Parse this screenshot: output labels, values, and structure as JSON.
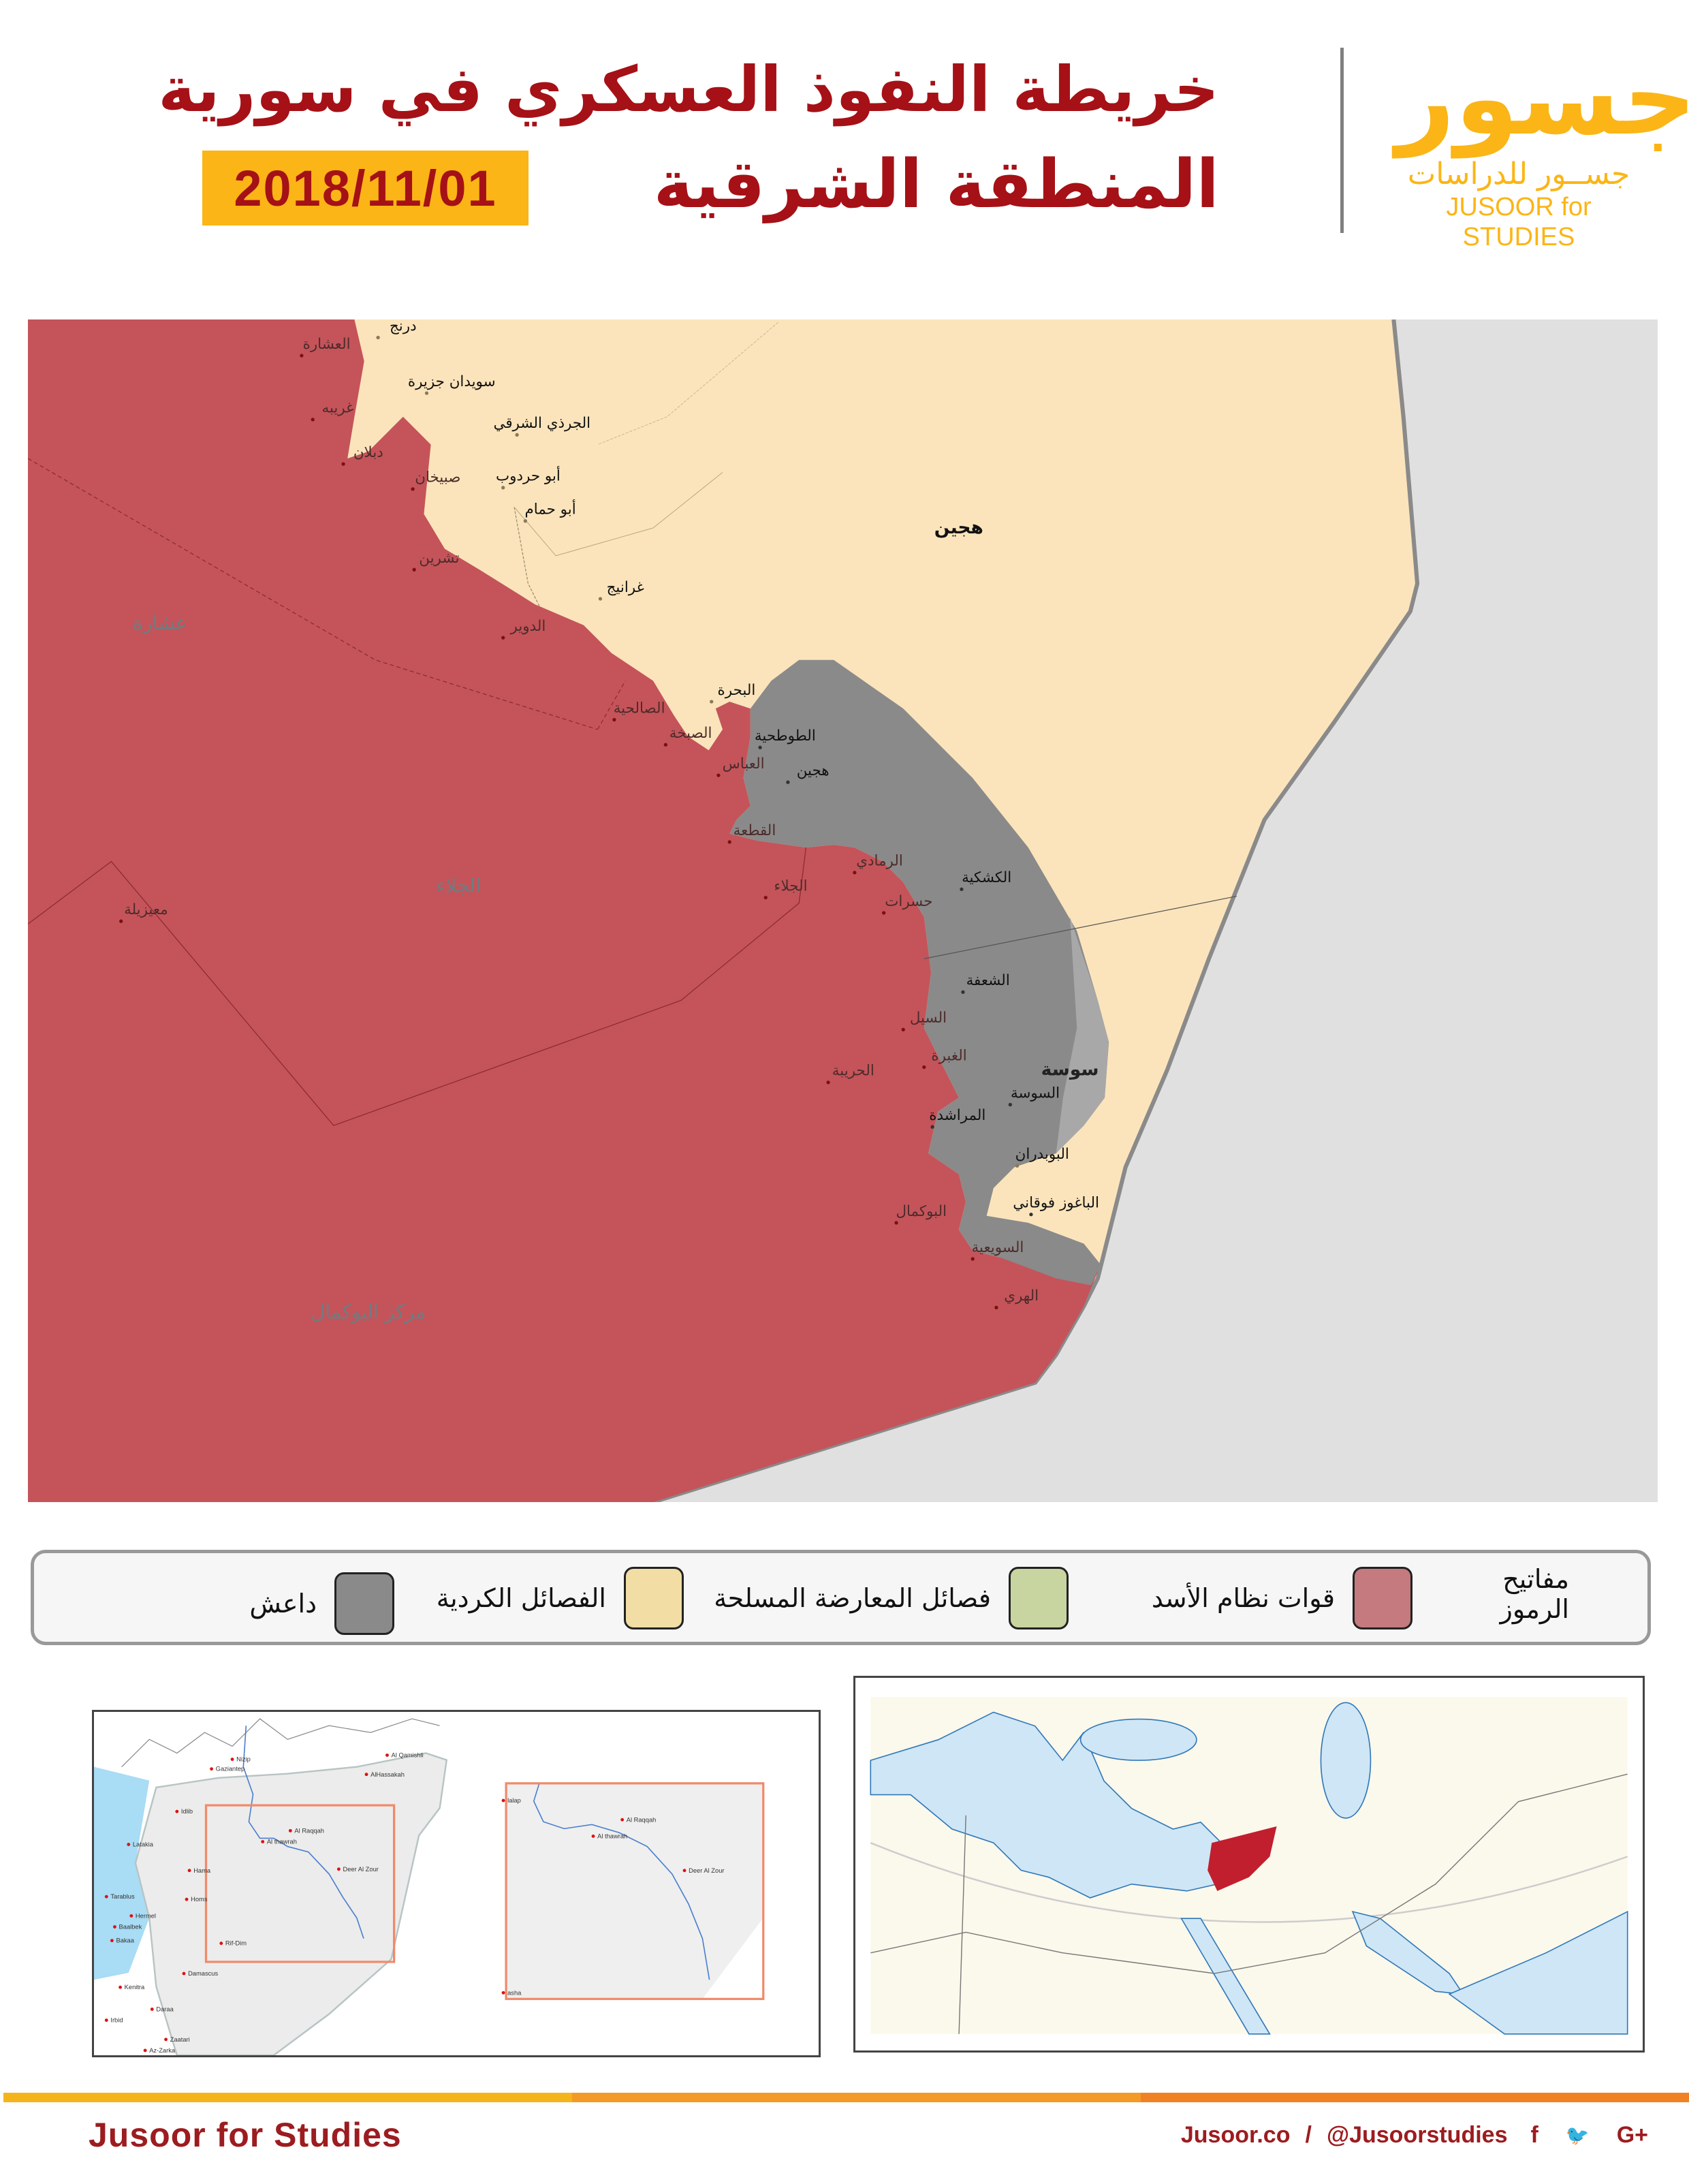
{
  "header": {
    "title": "خريطة النفوذ العسكري في سورية",
    "subtitle": "المنطقة الشرقية",
    "date": "2018/11/01"
  },
  "logo": {
    "mark": "جسور",
    "arabic": "جســور للدراسات",
    "english": "JUSOOR for STUDIES"
  },
  "colors": {
    "regime": "#c4545a",
    "kurdish": "#fbe4bb",
    "isis": "#8a8a8a",
    "outside": "#e0e0e0",
    "accent": "#a51116",
    "gold": "#fbb516"
  },
  "map": {
    "regions": [
      "عشارة",
      "الجلاء",
      "مركز البوكمال"
    ],
    "places": [
      {
        "name": "درنج",
        "control": "kurdish"
      },
      {
        "name": "العشارة",
        "control": "regime"
      },
      {
        "name": "سويدان جزيرة",
        "control": "kurdish"
      },
      {
        "name": "غريبه",
        "control": "regime"
      },
      {
        "name": "الجرذي الشرقي",
        "control": "kurdish"
      },
      {
        "name": "دبلان",
        "control": "regime"
      },
      {
        "name": "أبو حردوب",
        "control": "kurdish"
      },
      {
        "name": "صبيخان",
        "control": "regime"
      },
      {
        "name": "أبو حمام",
        "control": "kurdish"
      },
      {
        "name": "تشرين",
        "control": "regime"
      },
      {
        "name": "غرانيج",
        "control": "kurdish"
      },
      {
        "name": "الدوير",
        "control": "regime"
      },
      {
        "name": "الصالحية",
        "control": "regime"
      },
      {
        "name": "البحرة",
        "control": "kurdish"
      },
      {
        "name": "الصبخة",
        "control": "regime"
      },
      {
        "name": "الطوطحية",
        "control": "isis"
      },
      {
        "name": "العباس",
        "control": "regime"
      },
      {
        "name": "هجين",
        "control": "isis"
      },
      {
        "name": "القطعة",
        "control": "regime"
      },
      {
        "name": "الرمادي",
        "control": "regime"
      },
      {
        "name": "الجلاء",
        "control": "regime"
      },
      {
        "name": "الكشكية",
        "control": "isis"
      },
      {
        "name": "حسرات",
        "control": "regime"
      },
      {
        "name": "الشعفة",
        "control": "isis"
      },
      {
        "name": "السيل",
        "control": "regime"
      },
      {
        "name": "الغبرة",
        "control": "regime"
      },
      {
        "name": "الحريبة",
        "control": "regime"
      },
      {
        "name": "السوسة",
        "control": "isis"
      },
      {
        "name": "المراشدة",
        "control": "isis"
      },
      {
        "name": "البوبدران",
        "control": "kurdish"
      },
      {
        "name": "الباغوز فوقاني",
        "control": "isis"
      },
      {
        "name": "البوكمال",
        "control": "regime"
      },
      {
        "name": "السويعية",
        "control": "regime"
      },
      {
        "name": "الهري",
        "control": "regime"
      },
      {
        "name": "معيزيلة",
        "control": "regime"
      }
    ],
    "big_labels": [
      "هجين",
      "سوسة"
    ]
  },
  "legend": {
    "heading_line1": "مفاتيح",
    "heading_line2": "الرموز",
    "items": [
      {
        "label": "قوات نظام الأسد",
        "color": "#c47a7e"
      },
      {
        "label": "فصائل المعارضة المسلحة",
        "color": "#c8d5a0"
      },
      {
        "label": "الفصائل الكردية",
        "color": "#f2dda4"
      },
      {
        "label": "داعش",
        "color": "#8a8a8a"
      }
    ]
  },
  "inset_syria": {
    "cities": [
      "Al Qamishli",
      "AlHassakah",
      "Gaziantep",
      "Nizip",
      "Idlib",
      "Latakia",
      "Hama",
      "Homs",
      "Tarablus",
      "Hermel",
      "Baalbek",
      "Bakaa",
      "Rif-Dim",
      "Damascus",
      "Kenitra",
      "Daraa",
      "Irbid",
      "Zaatari",
      "Az-Zarka",
      "Al Raqqah",
      "Al thawrah",
      "Deer Al Zour"
    ],
    "zoom_cities": [
      "Al Raqqah",
      "Al thawrah",
      "Deer Al Zour",
      "lalap",
      "asha"
    ]
  },
  "footer": {
    "brand": "Jusoor for Studies",
    "site": "Jusoor.co",
    "separator": "/",
    "handle": "@Jusoorstudies",
    "social": [
      "f",
      "🐦",
      "G+"
    ],
    "bar_colors": [
      "#f5b41c",
      "#f39a26",
      "#f08225"
    ]
  }
}
